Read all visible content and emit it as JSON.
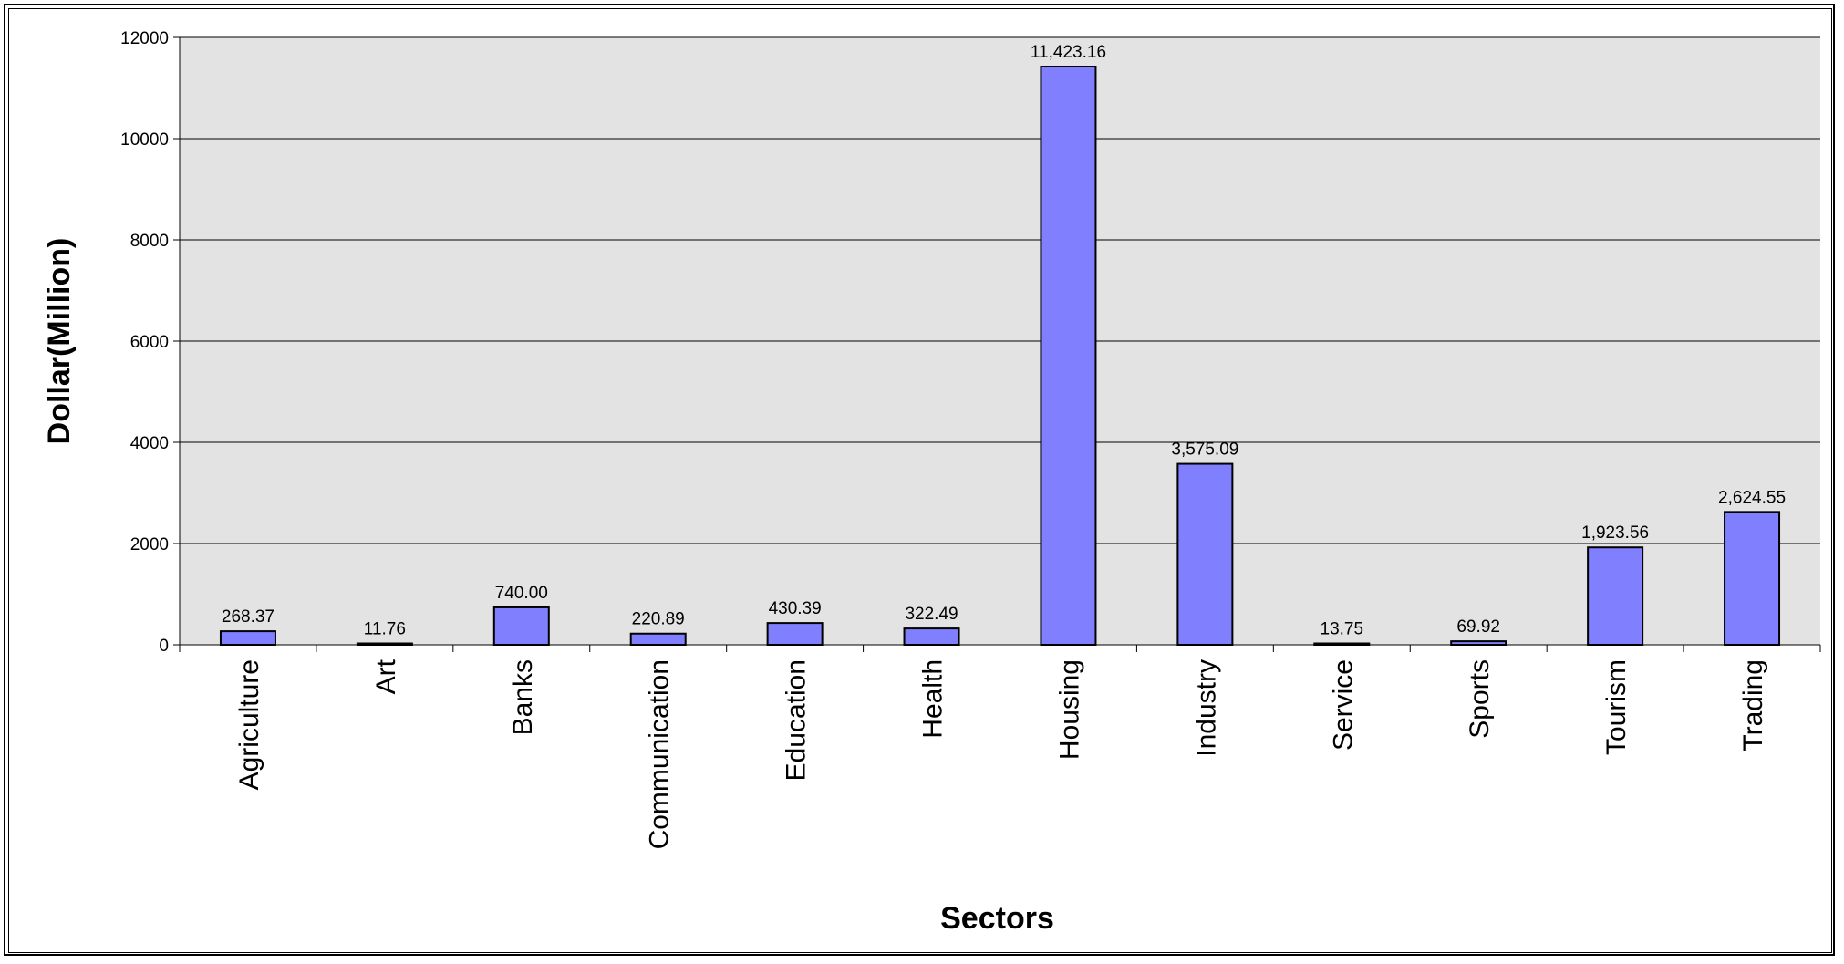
{
  "chart_data": {
    "type": "bar",
    "title": "",
    "xlabel": "Sectors",
    "ylabel": "Dollar(Million)",
    "ylim": [
      0,
      12000
    ],
    "yticks": [
      0,
      2000,
      4000,
      6000,
      8000,
      10000,
      12000
    ],
    "grid": true,
    "legend": "none",
    "categories": [
      "Agriculture",
      "Art",
      "Banks",
      "Communication",
      "Education",
      "Health",
      "Housing",
      "Industry",
      "Service",
      "Sports",
      "Tourism",
      "Trading"
    ],
    "values": [
      268.37,
      11.76,
      740.0,
      220.89,
      430.39,
      322.49,
      11423.16,
      3575.09,
      13.75,
      69.92,
      1923.56,
      2624.55
    ],
    "data_labels": [
      "268.37",
      "11.76",
      "740.00",
      "220.89",
      "430.39",
      "322.49",
      "11,423.16",
      "3,575.09",
      "13.75",
      "69.92",
      "1,923.56",
      "2,624.55"
    ],
    "colors": {
      "bar_fill": "#8080ff",
      "bar_stroke": "#000000",
      "plot_background": "#e3e3e3",
      "gridline": "#000000"
    }
  }
}
